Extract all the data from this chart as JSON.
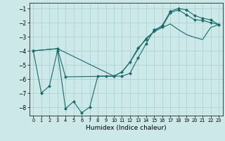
{
  "xlabel": "Humidex (Indice chaleur)",
  "xlim": [
    -0.5,
    23.5
  ],
  "ylim": [
    -8.6,
    -0.6
  ],
  "yticks": [
    -1,
    -2,
    -3,
    -4,
    -5,
    -6,
    -7,
    -8
  ],
  "xticks": [
    0,
    1,
    2,
    3,
    4,
    5,
    6,
    7,
    8,
    9,
    10,
    11,
    12,
    13,
    14,
    15,
    16,
    17,
    18,
    19,
    20,
    21,
    22,
    23
  ],
  "bg_color": "#cce8e8",
  "line_color": "#1a6b6b",
  "grid_color": "#a8cfcf",
  "line1_x": [
    0,
    1,
    2,
    3,
    4,
    5,
    6,
    7,
    8,
    9,
    10,
    11,
    12,
    13,
    14,
    15,
    16,
    17,
    18,
    19,
    20,
    21,
    22,
    23
  ],
  "line1_y": [
    -4.0,
    -7.0,
    -6.5,
    -4.0,
    -8.1,
    -7.6,
    -8.4,
    -8.0,
    -5.8,
    -5.8,
    -5.8,
    -5.8,
    -5.6,
    -4.5,
    -3.5,
    -2.5,
    -2.3,
    -1.3,
    -1.1,
    -1.45,
    -1.8,
    -1.85,
    -2.0,
    -2.15
  ],
  "line2_x": [
    0,
    3,
    4,
    10,
    11,
    12,
    13,
    14,
    15,
    16,
    17,
    18,
    19,
    20,
    21,
    22,
    23
  ],
  "line2_y": [
    -4.0,
    -3.85,
    -5.85,
    -5.8,
    -5.5,
    -4.8,
    -3.8,
    -3.2,
    -2.6,
    -2.2,
    -1.2,
    -1.0,
    -1.1,
    -1.5,
    -1.7,
    -1.8,
    -2.15
  ],
  "line3_x": [
    0,
    3,
    10,
    11,
    12,
    13,
    14,
    15,
    16,
    17,
    18,
    19,
    20,
    21,
    22,
    23
  ],
  "line3_y": [
    -4.0,
    -3.85,
    -5.8,
    -5.5,
    -4.8,
    -3.9,
    -3.1,
    -2.65,
    -2.35,
    -2.1,
    -2.5,
    -2.85,
    -3.05,
    -3.2,
    -2.35,
    -2.15
  ]
}
